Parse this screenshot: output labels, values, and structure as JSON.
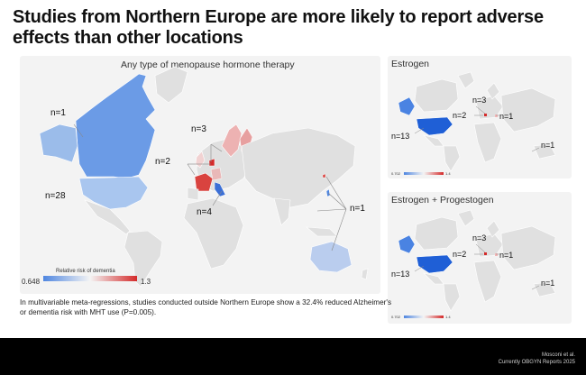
{
  "headline": "Studies from Northern Europe are more likely to report adverse effects than other locations",
  "main_map": {
    "title": "Any type of menopause hormone therapy",
    "labels": [
      "n=1",
      "n=3",
      "n=2",
      "n=28",
      "n=4",
      "n=1"
    ],
    "legend_title": "Relative risk of dementia",
    "legend_min": "0.648",
    "legend_max": "1.3"
  },
  "estrogen_map": {
    "title": "Estrogen",
    "labels": [
      "n=3",
      "n=2",
      "n=1",
      "n=13",
      "n=1"
    ],
    "legend_min": "0.702",
    "legend_max": "1.4"
  },
  "ep_map": {
    "title": "Estrogen + Progestogen",
    "labels": [
      "n=3",
      "n=2",
      "n=1",
      "n=13",
      "n=1"
    ],
    "legend_min": "0.702",
    "legend_max": "1.4"
  },
  "caption": "In multivariable meta-regressions, studies conducted outside Northern Europe show a 32.4% reduced Alzheimer's or dementia risk with MHT use (P=0.005).",
  "citation": {
    "line1": "Mosconi et al.",
    "line2": "Currently OBGYN Reports 2025"
  },
  "colors": {
    "low": "#4f86e0",
    "mid": "#f4f4f4",
    "high": "#d42a2a",
    "usa_main": "#a9c6ef",
    "canada_main": "#6b9be6",
    "usa_small": "#1f5fd6",
    "alaska_small": "#4a83e2"
  }
}
